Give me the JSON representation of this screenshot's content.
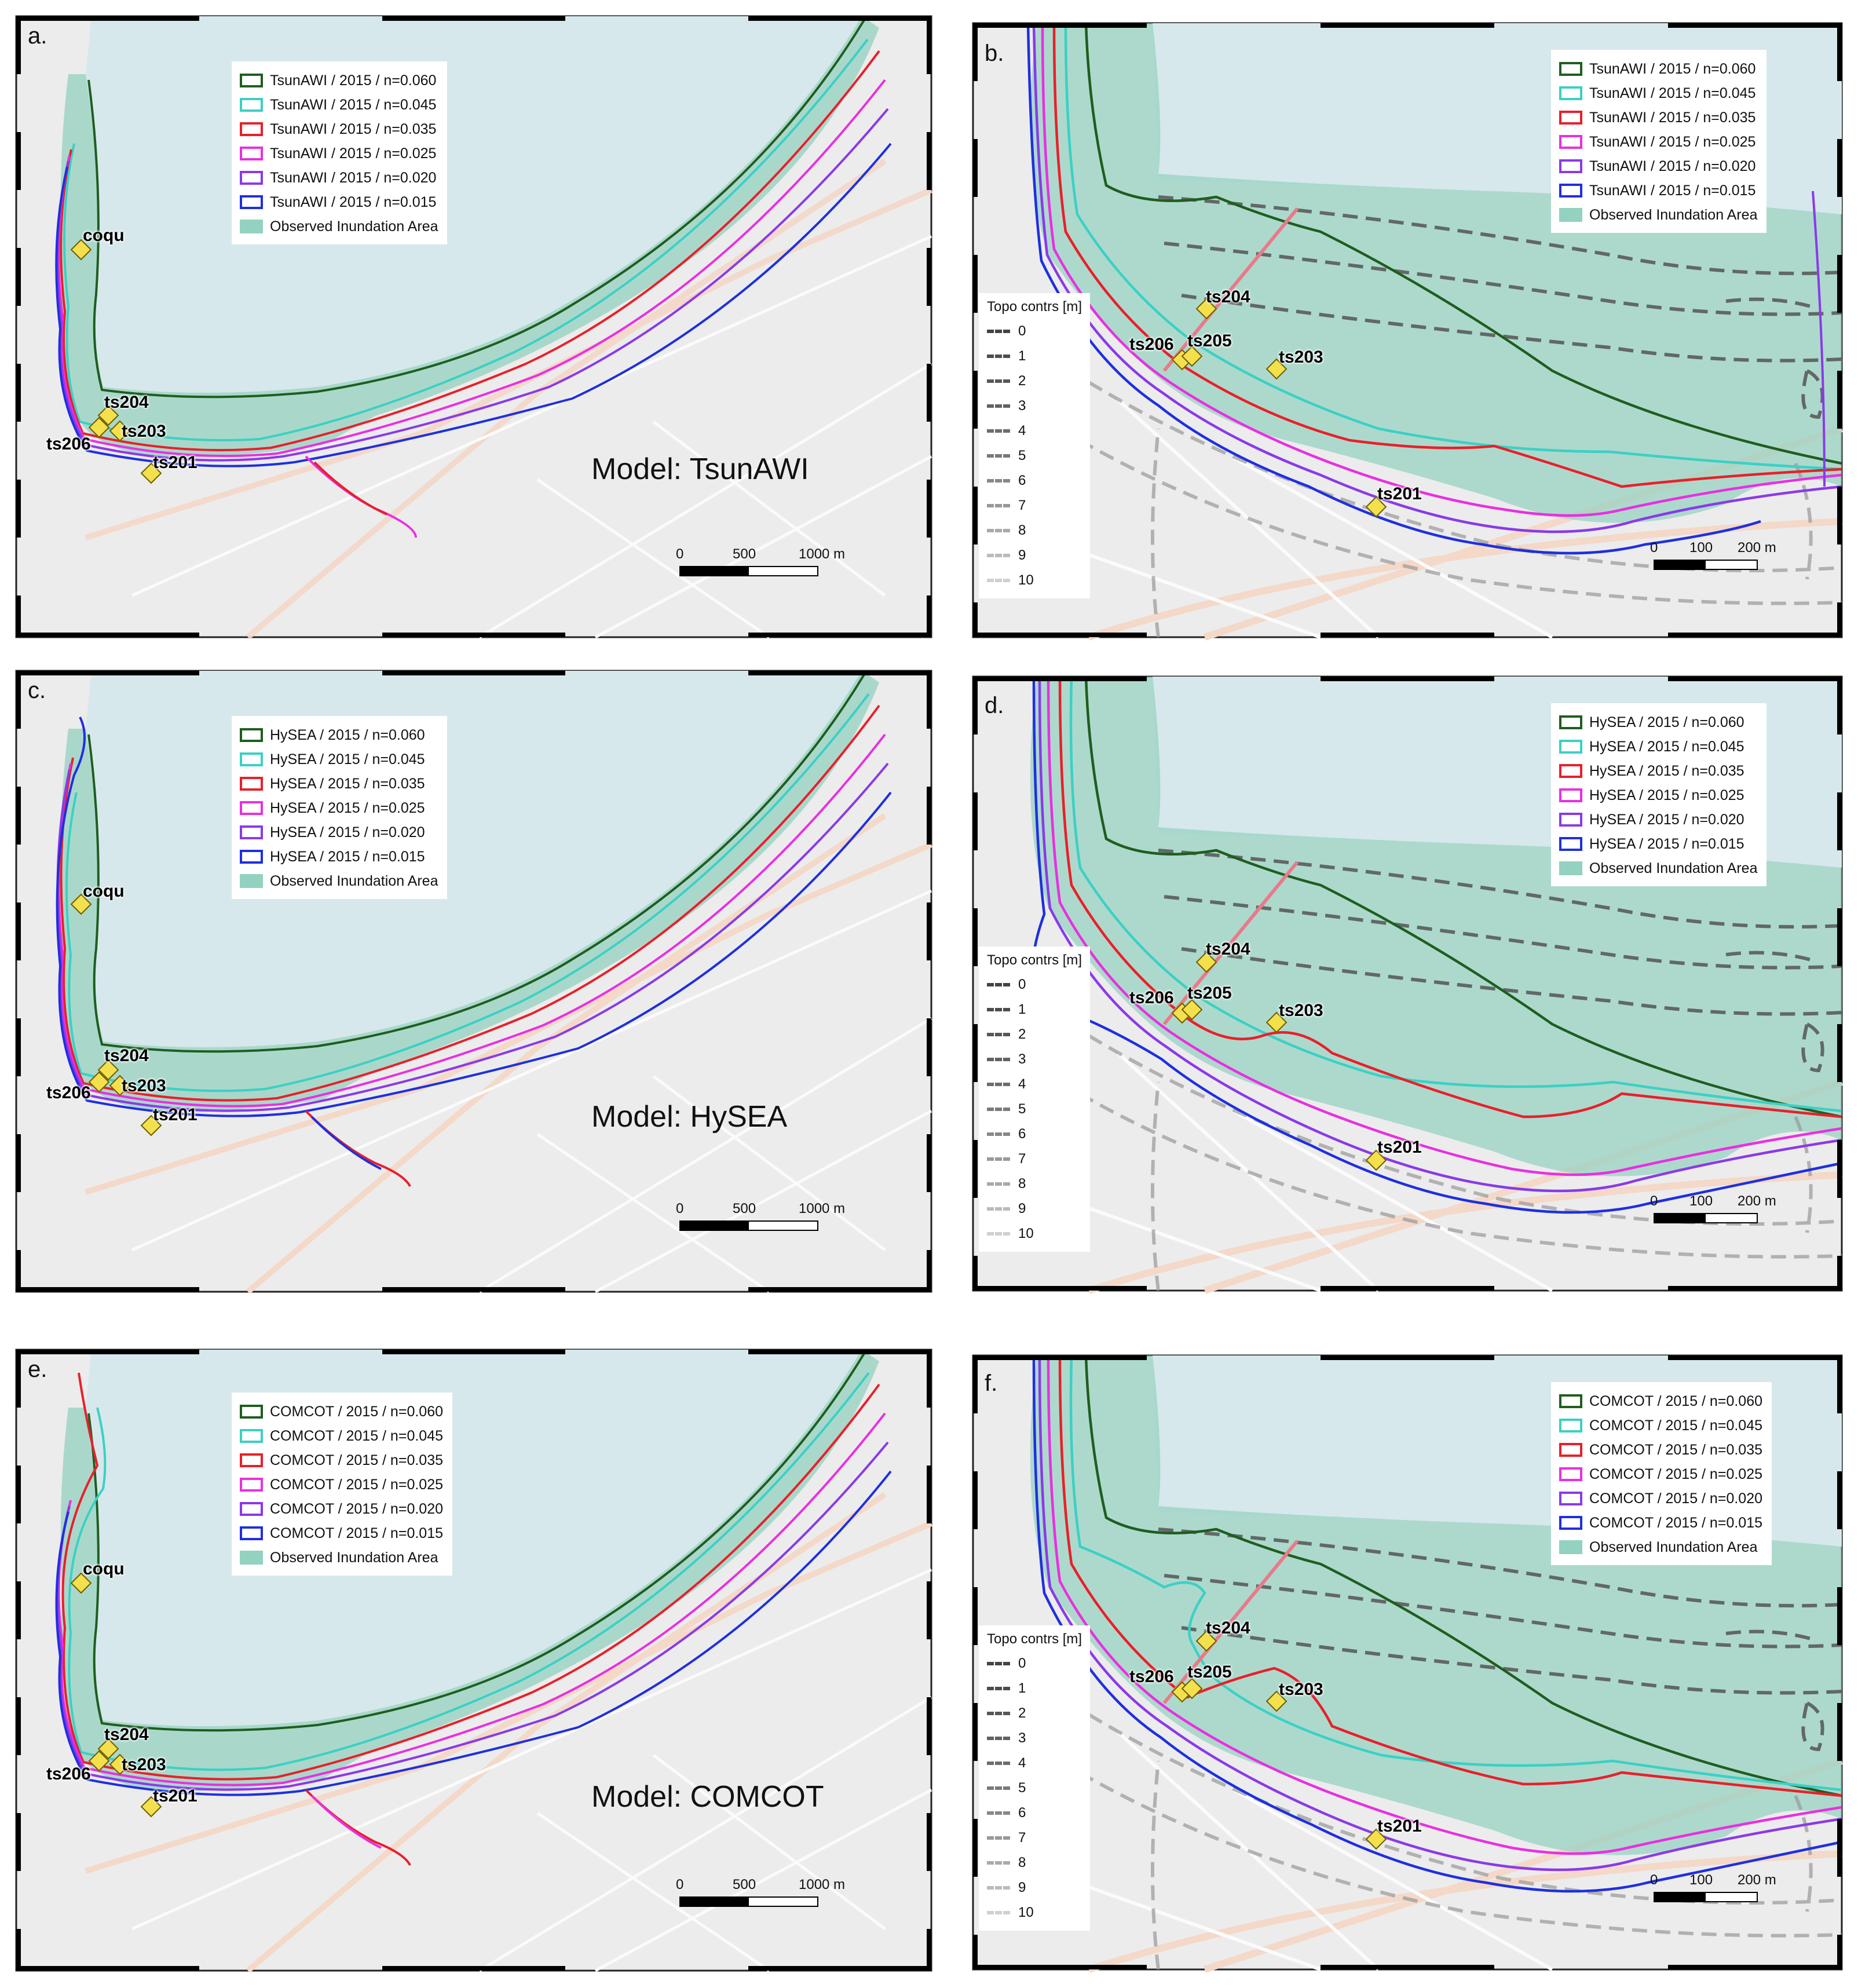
{
  "panels": [
    {
      "letter": "a.",
      "legend": {
        "entries": [
          "TsunAWI / 2015 / n=0.060",
          "TsunAWI / 2015 / n=0.045",
          "TsunAWI / 2015 / n=0.035",
          "TsunAWI / 2015 / n=0.025",
          "TsunAWI / 2015 / n=0.020",
          "TsunAWI / 2015 / n=0.015"
        ],
        "observed": "Observed Inundation Area"
      },
      "model_label": "Model: TsunAWI",
      "scale": {
        "ticks": [
          "0",
          "500",
          "1000 m"
        ]
      },
      "stations": [
        "coqu",
        "ts204",
        "ts206",
        "ts203",
        "ts201"
      ]
    },
    {
      "letter": "b.",
      "legend": {
        "entries": [
          "TsunAWI / 2015 / n=0.060",
          "TsunAWI / 2015 / n=0.045",
          "TsunAWI / 2015 / n=0.035",
          "TsunAWI / 2015 / n=0.025",
          "TsunAWI / 2015 / n=0.020",
          "TsunAWI / 2015 / n=0.015"
        ],
        "observed": "Observed Inundation Area"
      },
      "topo": {
        "title": "Topo contrs [m]",
        "levels": [
          "0",
          "1",
          "2",
          "3",
          "4",
          "5",
          "6",
          "7",
          "8",
          "9",
          "10"
        ]
      },
      "scale": {
        "ticks": [
          "0",
          "100",
          "200 m"
        ]
      },
      "stations": [
        "ts204",
        "ts206",
        "ts205",
        "ts203",
        "ts201"
      ]
    },
    {
      "letter": "c.",
      "legend": {
        "entries": [
          "HySEA / 2015 / n=0.060",
          "HySEA / 2015 / n=0.045",
          "HySEA / 2015 / n=0.035",
          "HySEA / 2015 / n=0.025",
          "HySEA / 2015 / n=0.020",
          "HySEA / 2015 / n=0.015"
        ],
        "observed": "Observed Inundation Area"
      },
      "model_label": "Model: HySEA",
      "scale": {
        "ticks": [
          "0",
          "500",
          "1000 m"
        ]
      },
      "stations": [
        "coqu",
        "ts204",
        "ts206",
        "ts203",
        "ts201"
      ]
    },
    {
      "letter": "d.",
      "legend": {
        "entries": [
          "HySEA / 2015 / n=0.060",
          "HySEA / 2015 / n=0.045",
          "HySEA / 2015 / n=0.035",
          "HySEA / 2015 / n=0.025",
          "HySEA / 2015 / n=0.020",
          "HySEA / 2015 / n=0.015"
        ],
        "observed": "Observed Inundation Area"
      },
      "topo": {
        "title": "Topo contrs [m]",
        "levels": [
          "0",
          "1",
          "2",
          "3",
          "4",
          "5",
          "6",
          "7",
          "8",
          "9",
          "10"
        ]
      },
      "scale": {
        "ticks": [
          "0",
          "100",
          "200 m"
        ]
      },
      "stations": [
        "ts204",
        "ts206",
        "ts205",
        "ts203",
        "ts201"
      ]
    },
    {
      "letter": "e.",
      "legend": {
        "entries": [
          "COMCOT / 2015 / n=0.060",
          "COMCOT / 2015 / n=0.045",
          "COMCOT / 2015 / n=0.035",
          "COMCOT / 2015 / n=0.025",
          "COMCOT / 2015 / n=0.020",
          "COMCOT / 2015 / n=0.015"
        ],
        "observed": "Observed Inundation Area"
      },
      "model_label": "Model: COMCOT",
      "scale": {
        "ticks": [
          "0",
          "500",
          "1000 m"
        ]
      },
      "stations": [
        "coqu",
        "ts204",
        "ts206",
        "ts203",
        "ts201"
      ]
    },
    {
      "letter": "f.",
      "legend": {
        "entries": [
          "COMCOT / 2015 / n=0.060",
          "COMCOT / 2015 / n=0.045",
          "COMCOT / 2015 / n=0.035",
          "COMCOT / 2015 / n=0.025",
          "COMCOT / 2015 / n=0.020",
          "COMCOT / 2015 / n=0.015"
        ],
        "observed": "Observed Inundation Area"
      },
      "topo": {
        "title": "Topo contrs [m]",
        "levels": [
          "0",
          "1",
          "2",
          "3",
          "4",
          "5",
          "6",
          "7",
          "8",
          "9",
          "10"
        ]
      },
      "scale": {
        "ticks": [
          "0",
          "100",
          "200 m"
        ]
      },
      "stations": [
        "ts204",
        "ts206",
        "ts205",
        "ts203",
        "ts201"
      ]
    }
  ],
  "colors": {
    "n060": "#1f5e1f",
    "n045": "#3cd0c4",
    "n035": "#e8202a",
    "n025": "#e830e0",
    "n020": "#8a3ae8",
    "n015": "#1f2fe0",
    "observed": "#93d1c0",
    "sea": "#d6e8ec",
    "land": "#ececec",
    "station_marker": "#f4e04d",
    "profile_line": "#e87a8a"
  }
}
